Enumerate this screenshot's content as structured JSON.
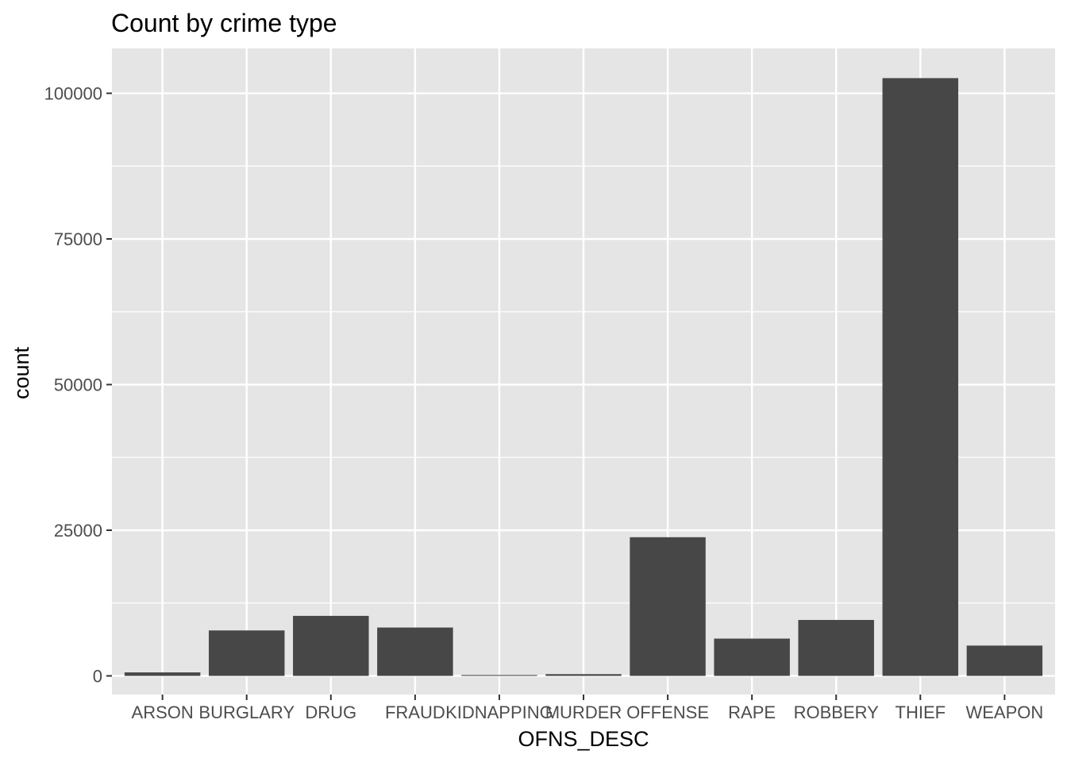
{
  "chart_data": {
    "type": "bar",
    "title": "Count by crime type",
    "xlabel": "OFNS_DESC",
    "ylabel": "count",
    "categories": [
      "ARSON",
      "BURGLARY",
      "DRUG",
      "FRAUD",
      "KIDNAPPING",
      "MURDER",
      "OFFENSE",
      "RAPE",
      "ROBBERY",
      "THIEF",
      "WEAPON"
    ],
    "values": [
      600,
      7800,
      10300,
      8300,
      150,
      300,
      23800,
      6400,
      9600,
      102600,
      5200
    ],
    "ylim": [
      -3200,
      107700
    ],
    "yticks": [
      0,
      25000,
      50000,
      75000,
      100000
    ],
    "grid": true,
    "colors": {
      "panel": "#e5e5e5",
      "grid": "#ffffff",
      "bar": "#474747",
      "tick": "#333333",
      "tick_label": "#4d4d4d"
    }
  }
}
